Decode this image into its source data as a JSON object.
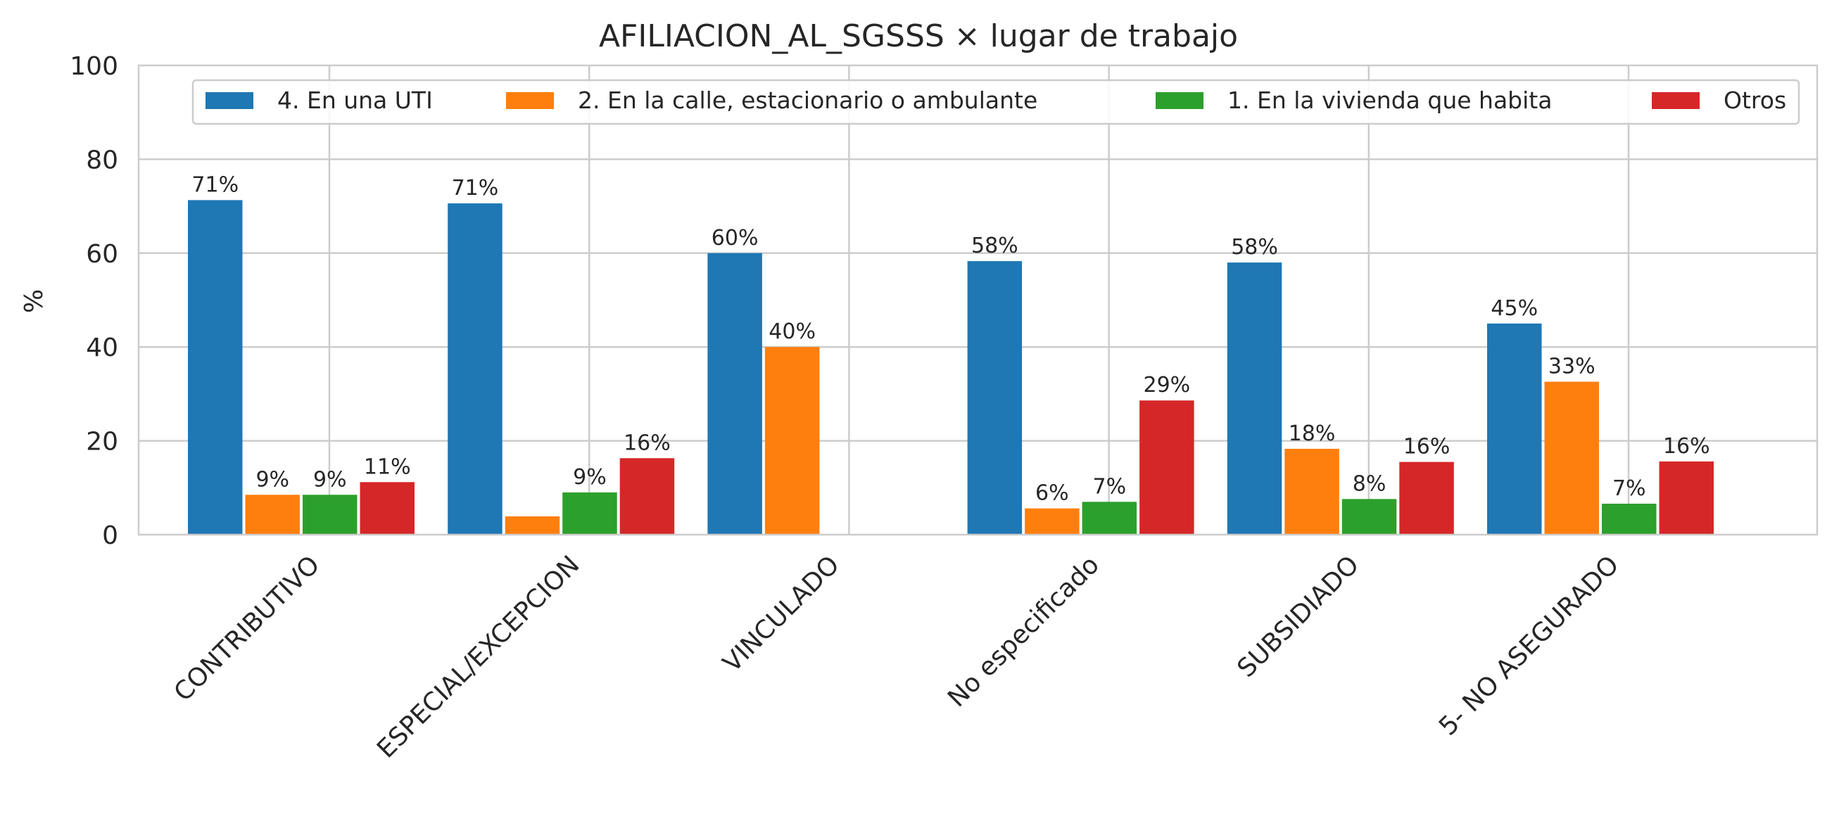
{
  "chart_data": {
    "type": "bar",
    "title": "AFILIACION_AL_SGSSS × lugar de trabajo",
    "xlabel": "",
    "ylabel": "%",
    "ylim": [
      0,
      100
    ],
    "yticks": [
      0,
      20,
      40,
      60,
      80,
      100
    ],
    "grid": true,
    "legend_position": "top",
    "categories": [
      "CONTRIBUTIVO",
      "ESPECIAL/EXCEPCION",
      "VINCULADO",
      "No especificado",
      "SUBSIDIADO",
      "5- NO ASEGURADO"
    ],
    "series": [
      {
        "name": "4. En una UTI",
        "color": "#1f77b4",
        "values": [
          71.3,
          70.6,
          60.0,
          58.3,
          58.0,
          45.0
        ],
        "labels": [
          "71%",
          "71%",
          "60%",
          "58%",
          "58%",
          "45%"
        ]
      },
      {
        "name": "2. En la calle, estacionario o ambulante",
        "color": "#ff7f0e",
        "values": [
          8.5,
          3.9,
          40.0,
          5.6,
          18.3,
          32.6
        ],
        "labels": [
          "9%",
          "",
          "40%",
          "6%",
          "18%",
          "33%"
        ]
      },
      {
        "name": "1. En la vivienda que habita",
        "color": "#2ca02c",
        "values": [
          8.5,
          9.0,
          0,
          7.0,
          7.6,
          6.6
        ],
        "labels": [
          "9%",
          "9%",
          "",
          "7%",
          "8%",
          "7%"
        ]
      },
      {
        "name": "Otros",
        "color": "#d62728",
        "values": [
          11.2,
          16.3,
          0,
          28.6,
          15.5,
          15.6
        ],
        "labels": [
          "11%",
          "16%",
          "",
          "29%",
          "16%",
          "16%"
        ]
      }
    ]
  }
}
